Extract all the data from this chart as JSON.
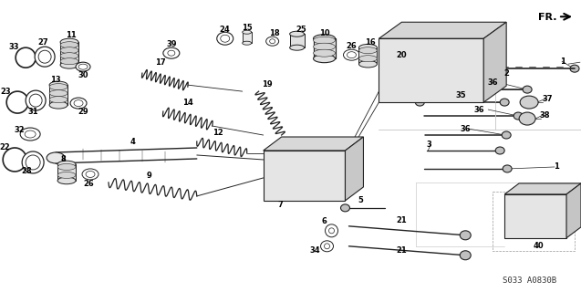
{
  "bg_color": "#ffffff",
  "fig_width": 6.37,
  "fig_height": 3.2,
  "dpi": 100,
  "watermark_text": "S033 A0830B",
  "fr_label": "FR.",
  "lc": "#222222",
  "gray": "#888888",
  "lightgray": "#cccccc",
  "darkgray": "#555555"
}
